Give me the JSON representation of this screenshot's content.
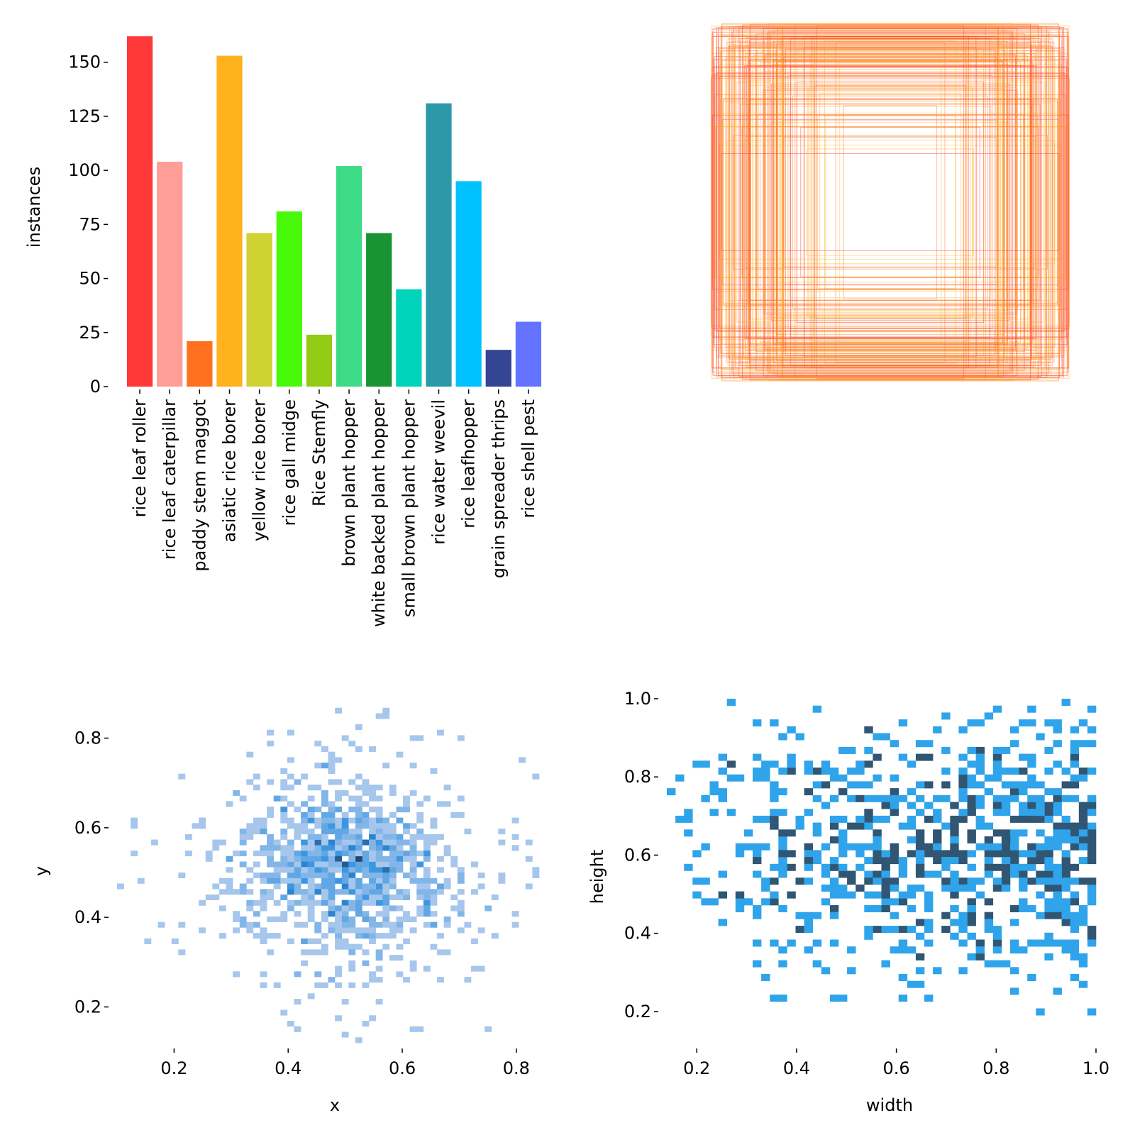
{
  "chart_data": [
    {
      "type": "bar",
      "title": "",
      "xlabel": "",
      "ylabel": "instances",
      "ylim": [
        0,
        165
      ],
      "yticks": [
        0,
        25,
        50,
        75,
        100,
        125,
        150
      ],
      "categories": [
        "rice leaf roller",
        "rice leaf caterpillar",
        "paddy stem maggot",
        "asiatic rice borer",
        "yellow rice borer",
        "rice gall midge",
        "Rice Stemfly",
        "brown plant hopper",
        "white backed plant hopper",
        "small brown plant hopper",
        "rice water weevil",
        "rice leafhopper",
        "grain spreader thrips",
        "rice shell pest"
      ],
      "values": [
        162,
        104,
        21,
        153,
        71,
        81,
        24,
        102,
        71,
        45,
        131,
        95,
        17,
        30
      ],
      "colors": [
        "#ff3838",
        "#ff9d97",
        "#ff701f",
        "#ffb21d",
        "#cfd231",
        "#48f90a",
        "#92cc17",
        "#3ddb86",
        "#1a9334",
        "#00d4bb",
        "#2c99a8",
        "#00c2ff",
        "#344593",
        "#6473ff"
      ]
    },
    {
      "type": "boxes",
      "title": "",
      "description_colors": [
        "#ff3838",
        "#ff701f",
        "#ffb21d"
      ],
      "box_count": 180
    },
    {
      "type": "heatmap",
      "title": "",
      "xlabel": "x",
      "ylabel": "y",
      "xlim": [
        0.1,
        0.84
      ],
      "ylim": [
        0.12,
        0.88
      ],
      "xticks": [
        "0.2",
        "0.4",
        "0.6",
        "0.8"
      ],
      "yticks": [
        "0.2",
        "0.4",
        "0.6",
        "0.8"
      ],
      "center": [
        0.5,
        0.51
      ],
      "spread": 0.085,
      "color_light": "#a6c6ec",
      "color_dark": "#24476f"
    },
    {
      "type": "heatmap",
      "title": "",
      "xlabel": "width",
      "ylabel": "height",
      "xlim": [
        0.14,
        1.0
      ],
      "ylim": [
        0.12,
        1.0
      ],
      "xticks": [
        "0.2",
        "0.4",
        "0.6",
        "0.8",
        "1.0"
      ],
      "yticks": [
        "0.2",
        "0.4",
        "0.6",
        "0.8",
        "1.0"
      ],
      "color_light": "#2fa4ea",
      "color_dark": "#305674"
    }
  ]
}
